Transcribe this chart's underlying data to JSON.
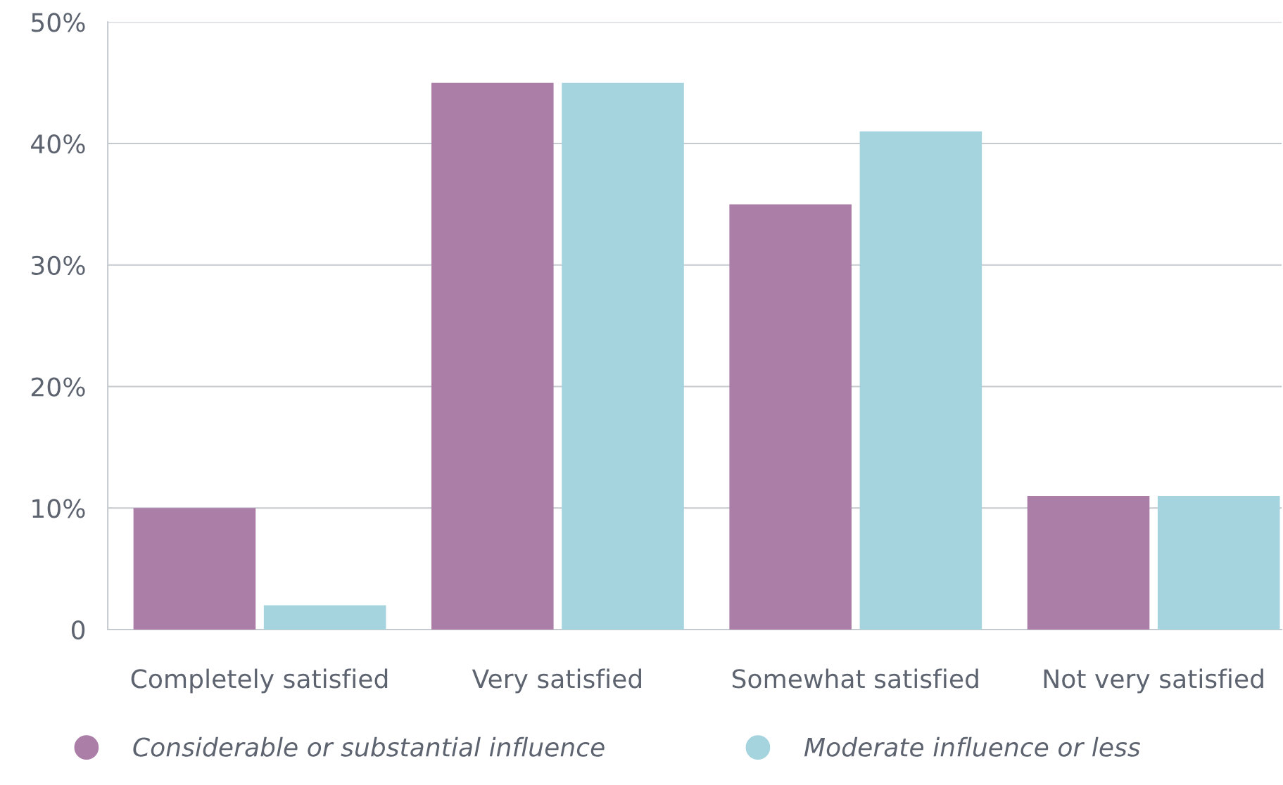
{
  "chart_data": {
    "type": "bar",
    "categories": [
      "Completely satisfied",
      "Very satisfied",
      "Somewhat satisfied",
      "Not very satisfied"
    ],
    "series": [
      {
        "name": "Considerable or substantial influence",
        "color": "#ab7ea8",
        "values": [
          10,
          45,
          35,
          11
        ]
      },
      {
        "name": "Moderate influence or less",
        "color": "#a5d4de",
        "values": [
          2,
          45,
          41,
          11
        ]
      }
    ],
    "ylim": [
      0,
      50
    ],
    "yticks": [
      0,
      {
        "value": 10,
        "label": "10%"
      },
      {
        "value": 20,
        "label": "20%"
      },
      {
        "value": 30,
        "label": "30%"
      },
      {
        "value": 40,
        "label": "40%"
      },
      {
        "value": 50,
        "label": "50%"
      }
    ],
    "grid": "y",
    "legend": "bottom",
    "marker": "circle"
  }
}
